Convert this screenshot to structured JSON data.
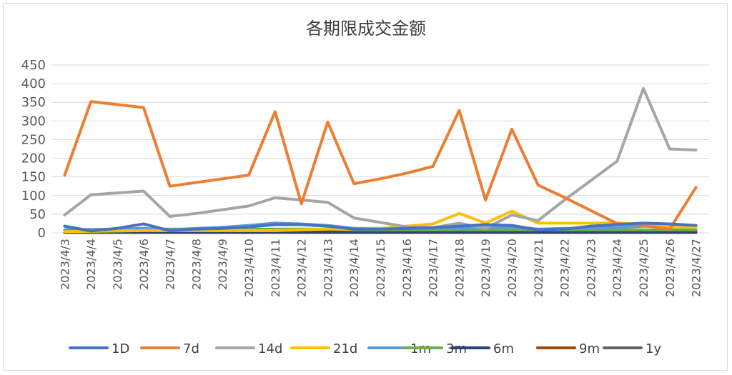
{
  "chart_data": {
    "type": "line",
    "title": "各期限成交金额",
    "xlabel": "",
    "ylabel": "",
    "ylim": [
      0,
      450
    ],
    "yticks": [
      0,
      50,
      100,
      150,
      200,
      250,
      300,
      350,
      400,
      450
    ],
    "grid": true,
    "legend_position": "bottom",
    "categories": [
      "2023/4/3",
      "2023/4/4",
      "2023/4/5",
      "2023/4/6",
      "2023/4/7",
      "2023/4/8",
      "2023/4/9",
      "2023/4/10",
      "2023/4/11",
      "2023/4/12",
      "2023/4/13",
      "2023/4/14",
      "2023/4/15",
      "2023/4/16",
      "2023/4/17",
      "2023/4/18",
      "2023/4/19",
      "2023/4/20",
      "2023/4/21",
      "2023/4/22",
      "2023/4/23",
      "2023/4/24",
      "2023/4/25",
      "2023/4/26",
      "2023/4/27"
    ],
    "series": [
      {
        "name": "1D",
        "color": "#4472c4",
        "values": [
          18,
          5,
          12,
          24,
          6,
          10,
          12,
          16,
          22,
          22,
          18,
          10,
          10,
          12,
          14,
          18,
          22,
          20,
          8,
          10,
          18,
          22,
          26,
          24,
          20
        ]
      },
      {
        "name": "7d",
        "color": "#ed7d31",
        "values": [
          155,
          352,
          344,
          336,
          125,
          135,
          145,
          155,
          325,
          78,
          297,
          132,
          145,
          160,
          178,
          328,
          88,
          278,
          128,
          95,
          60,
          25,
          20,
          10,
          122
        ]
      },
      {
        "name": "14d",
        "color": "#a5a5a5",
        "values": [
          48,
          102,
          107,
          112,
          44,
          52,
          62,
          72,
          94,
          88,
          82,
          40,
          28,
          16,
          14,
          26,
          12,
          48,
          33,
          88,
          140,
          192,
          387,
          225,
          222
        ]
      },
      {
        "name": "21d",
        "color": "#ffc000",
        "values": [
          3,
          4,
          5,
          6,
          6,
          6,
          6,
          6,
          6,
          8,
          10,
          10,
          12,
          18,
          24,
          52,
          26,
          58,
          26,
          26,
          26,
          26,
          24,
          16,
          16
        ]
      },
      {
        "name": "1m",
        "color": "#5b9bd5",
        "values": [
          8,
          8,
          10,
          12,
          8,
          12,
          15,
          20,
          26,
          24,
          20,
          12,
          12,
          14,
          14,
          12,
          14,
          16,
          10,
          12,
          12,
          14,
          18,
          16,
          18
        ]
      },
      {
        "name": "3m",
        "color": "#70ad47",
        "values": [
          8,
          9,
          10,
          10,
          10,
          10,
          10,
          10,
          10,
          10,
          10,
          8,
          8,
          8,
          8,
          8,
          8,
          8,
          8,
          8,
          8,
          8,
          8,
          8,
          8
        ]
      },
      {
        "name": "6m",
        "color": "#264478",
        "values": [
          2,
          2,
          2,
          2,
          2,
          2,
          2,
          2,
          3,
          2,
          2,
          2,
          2,
          2,
          2,
          2,
          2,
          2,
          2,
          2,
          2,
          2,
          2,
          2,
          2
        ]
      },
      {
        "name": "9m",
        "color": "#9e480e",
        "values": [
          1,
          1,
          1,
          1,
          1,
          1,
          1,
          1,
          1,
          1,
          1,
          1,
          1,
          1,
          1,
          1,
          1,
          1,
          1,
          1,
          1,
          1,
          1,
          1,
          1
        ]
      },
      {
        "name": "1y",
        "color": "#636363",
        "values": [
          2,
          3,
          3,
          3,
          3,
          3,
          3,
          4,
          5,
          4,
          4,
          3,
          3,
          3,
          3,
          3,
          3,
          3,
          3,
          3,
          3,
          3,
          3,
          3,
          3
        ]
      }
    ]
  }
}
